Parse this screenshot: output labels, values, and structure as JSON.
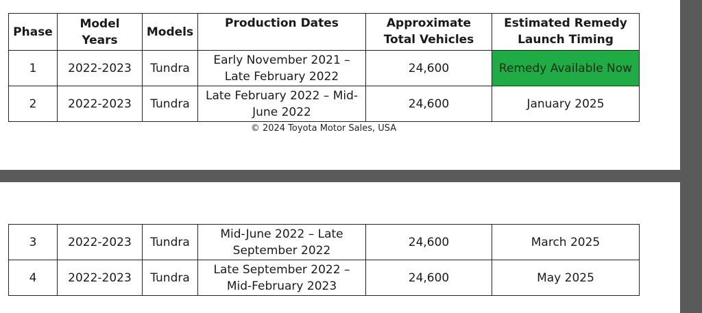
{
  "table": {
    "headers": {
      "phase": "Phase",
      "model_years": "Model Years",
      "models": "Models",
      "production_dates": "Production Dates",
      "approx_total_vehicles": "Approximate Total Vehicles",
      "remedy_timing": "Estimated Remedy Launch Timing"
    },
    "rows": [
      {
        "phase": "1",
        "model_years": "2022-2023",
        "model": "Tundra",
        "production_dates": "Early November 2021 – Late February 2022",
        "vehicles": "24,600",
        "remedy": "Remedy Available Now"
      },
      {
        "phase": "2",
        "model_years": "2022-2023",
        "model": "Tundra",
        "production_dates": "Late February 2022 – Mid-June 2022",
        "vehicles": "24,600",
        "remedy": "January 2025"
      },
      {
        "phase": "3",
        "model_years": "2022-2023",
        "model": "Tundra",
        "production_dates": "Mid-June 2022 – Late September 2022",
        "vehicles": "24,600",
        "remedy": "March 2025"
      },
      {
        "phase": "4",
        "model_years": "2022-2023",
        "model": "Tundra",
        "production_dates": "Late September 2022 – Mid-February 2023",
        "vehicles": "24,600",
        "remedy": "May 2025"
      }
    ]
  },
  "copyright": "© 2024 Toyota Motor Sales, USA",
  "colors": {
    "remedy_available": "#1fac45",
    "viewer_background": "#5a5a5a"
  }
}
